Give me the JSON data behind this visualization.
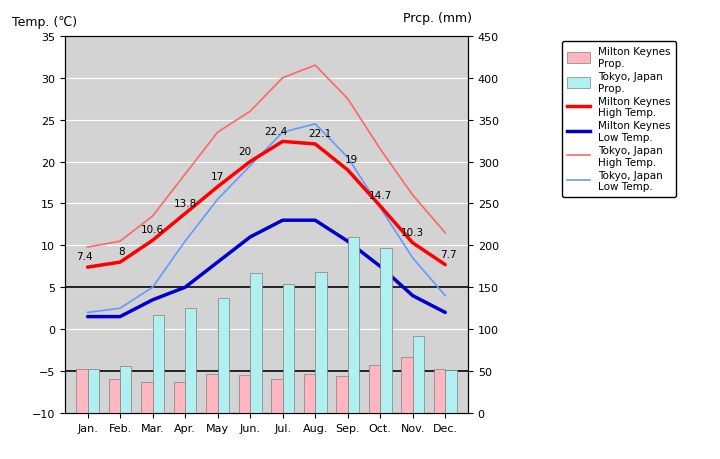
{
  "months": [
    "Jan.",
    "Feb.",
    "Mar.",
    "Apr.",
    "May",
    "Jun.",
    "Jul.",
    "Aug.",
    "Sep.",
    "Oct.",
    "Nov.",
    "Dec."
  ],
  "mk_high_temp": [
    7.4,
    8.0,
    10.6,
    13.8,
    17.0,
    20.0,
    22.4,
    22.1,
    19.0,
    14.7,
    10.3,
    7.7
  ],
  "mk_low_temp": [
    1.5,
    1.5,
    3.5,
    5.0,
    8.0,
    11.0,
    13.0,
    13.0,
    10.5,
    7.5,
    4.0,
    2.0
  ],
  "tokyo_high_temp": [
    9.8,
    10.5,
    13.5,
    18.5,
    23.5,
    26.0,
    30.0,
    31.5,
    27.5,
    21.5,
    16.0,
    11.5
  ],
  "tokyo_low_temp": [
    2.0,
    2.5,
    5.0,
    10.5,
    15.5,
    19.5,
    23.5,
    24.5,
    20.5,
    14.5,
    8.5,
    4.0
  ],
  "mk_precip": [
    52,
    40,
    37,
    37,
    46,
    45,
    41,
    47,
    44,
    57,
    67,
    53
  ],
  "tokyo_precip": [
    52,
    56,
    117,
    125,
    137,
    167,
    154,
    168,
    210,
    197,
    92,
    51
  ],
  "mk_high_labels": [
    "7.4",
    "8",
    "10.6",
    "13.8",
    "17",
    "20",
    "22.4",
    "22.1",
    "19",
    "14.7",
    "10.3",
    "7.7"
  ],
  "temp_ylim": [
    -10,
    35
  ],
  "precip_ylim": [
    0,
    450
  ],
  "temp_yticks": [
    -10,
    -5,
    0,
    5,
    10,
    15,
    20,
    25,
    30,
    35
  ],
  "precip_yticks": [
    0,
    50,
    100,
    150,
    200,
    250,
    300,
    350,
    400,
    450
  ],
  "bg_color": "#d3d3d3",
  "mk_bar_color": "#ffb6c1",
  "tokyo_bar_color": "#b0f0f0",
  "mk_high_color": "#ff0000",
  "mk_low_color": "#0000cc",
  "tokyo_high_color": "#ff6666",
  "tokyo_low_color": "#6699ff",
  "title_left": "Temp. (℃)",
  "title_right": "Prcp. (mm)"
}
